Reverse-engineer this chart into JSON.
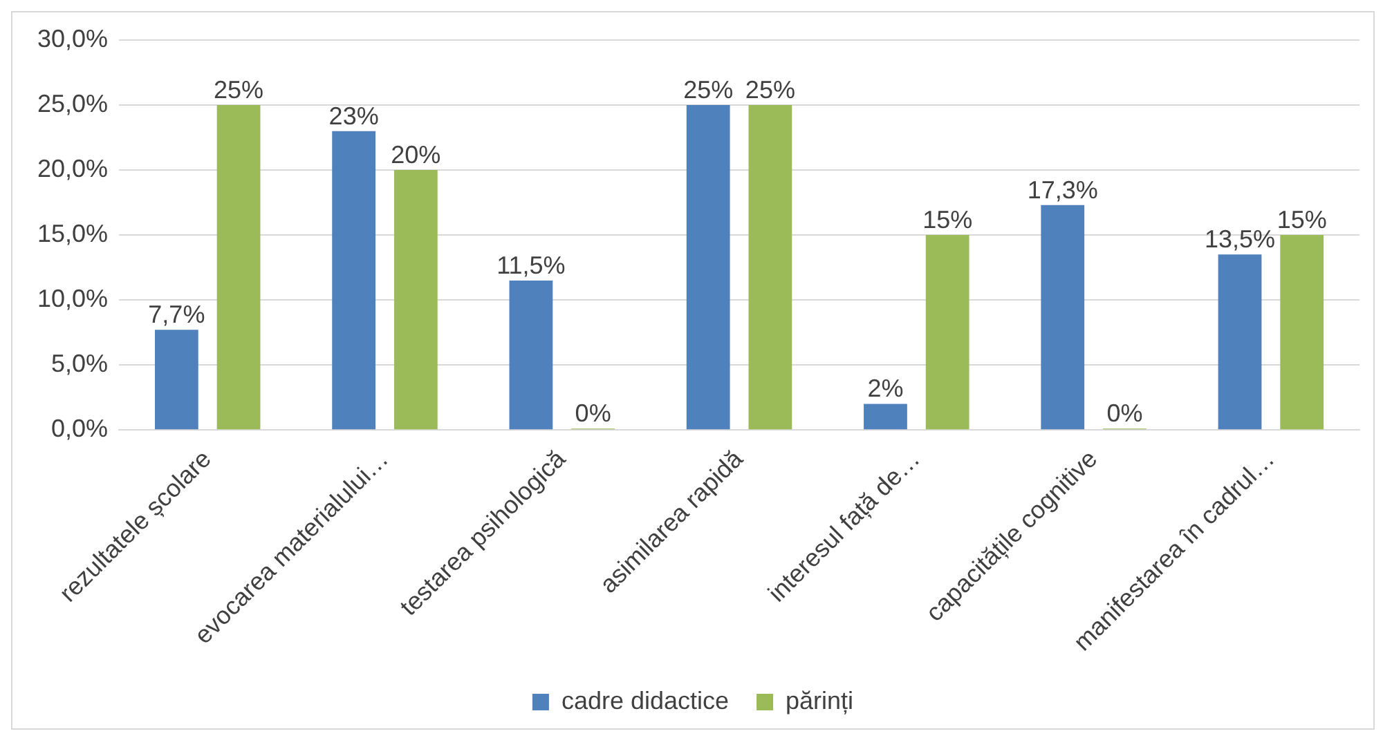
{
  "chart_data": {
    "type": "bar",
    "categories": [
      "rezultatele școlare",
      "evocarea materialului…",
      "testarea psihologică",
      "asimilarea rapidă",
      "interesul față de…",
      "capacitățile cognitive",
      "manifestarea în cadrul…"
    ],
    "series": [
      {
        "name": "cadre didactice",
        "color": "#4f81bd",
        "values": [
          7.7,
          23,
          11.5,
          25,
          2,
          17.3,
          13.5
        ],
        "value_labels": [
          "7,7%",
          "23%",
          "11,5%",
          "25%",
          "2%",
          "17,3%",
          "13,5%"
        ]
      },
      {
        "name": "părinți",
        "color": "#9bbb59",
        "values": [
          25,
          20,
          0,
          25,
          15,
          0,
          15
        ],
        "value_labels": [
          "25%",
          "20%",
          "0%",
          "25%",
          "15%",
          "0%",
          "15%"
        ]
      }
    ],
    "ylim": [
      0,
      30
    ],
    "yticks": [
      {
        "value": 0,
        "label": "0,0%"
      },
      {
        "value": 5,
        "label": "5,0%"
      },
      {
        "value": 10,
        "label": "10,0%"
      },
      {
        "value": 15,
        "label": "15,0%"
      },
      {
        "value": 20,
        "label": "20,0%"
      },
      {
        "value": 25,
        "label": "25,0%"
      },
      {
        "value": 30,
        "label": "30,0%"
      }
    ],
    "grid": "y",
    "legend": "bottom"
  }
}
